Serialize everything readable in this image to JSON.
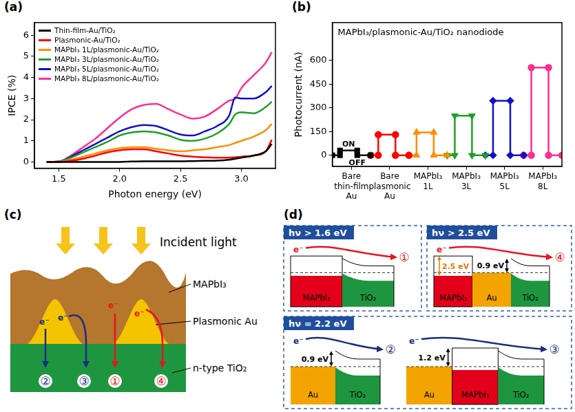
{
  "chart_data": [
    {
      "panel": "(a)",
      "type": "line",
      "x_label": "Photon energy (eV)",
      "y_label": "IPCE (%)",
      "x": [
        1.4,
        1.5,
        1.6,
        1.7,
        1.8,
        1.9,
        2.0,
        2.1,
        2.2,
        2.3,
        2.4,
        2.5,
        2.6,
        2.7,
        2.8,
        2.9,
        2.95,
        3.0,
        3.1,
        3.2,
        3.25
      ],
      "series": [
        {
          "name": "Thin-film-Au/TiO₂",
          "color": "#000000",
          "values": [
            0,
            0,
            0,
            0,
            0,
            0,
            0,
            0.02,
            0.03,
            0.03,
            0.03,
            0.03,
            0.04,
            0.05,
            0.06,
            0.1,
            0.15,
            0.2,
            0.3,
            0.5,
            0.85
          ]
        },
        {
          "name": "Plasmonic-Au/TiO₂",
          "color": "#ff0000",
          "values": [
            0,
            0,
            0.05,
            0.15,
            0.3,
            0.45,
            0.55,
            0.6,
            0.6,
            0.5,
            0.4,
            0.3,
            0.25,
            0.22,
            0.2,
            0.2,
            0.22,
            0.25,
            0.3,
            0.5,
            1.05
          ]
        },
        {
          "name": "MAPbI₃ 1L/plasmonic-Au/TiO₂",
          "color": "#ff8c00",
          "values": [
            0,
            0.01,
            0.1,
            0.25,
            0.4,
            0.55,
            0.65,
            0.7,
            0.7,
            0.62,
            0.55,
            0.5,
            0.55,
            0.6,
            0.7,
            0.8,
            0.9,
            1.0,
            1.2,
            1.5,
            1.8
          ]
        },
        {
          "name": "MAPbI₃ 3L/plasmonic-Au/TiO₂",
          "color": "#1e9e28",
          "values": [
            0,
            0.02,
            0.2,
            0.45,
            0.7,
            0.95,
            1.25,
            1.4,
            1.45,
            1.4,
            1.25,
            1.05,
            1.0,
            1.1,
            1.35,
            1.8,
            2.25,
            2.35,
            2.3,
            2.6,
            2.85
          ]
        },
        {
          "name": "MAPbI₃ 5L/plasmonic-Au/TiO₂",
          "color": "#1010c8",
          "values": [
            0,
            0.02,
            0.25,
            0.55,
            0.85,
            1.15,
            1.45,
            1.65,
            1.75,
            1.7,
            1.5,
            1.3,
            1.25,
            1.45,
            1.7,
            2.2,
            3.05,
            3.0,
            3.0,
            3.3,
            3.6
          ]
        },
        {
          "name": "MAPbI₃ 8L/plasmonic-Au/TiO₂",
          "color": "#ff2d91",
          "values": [
            0,
            0.02,
            0.3,
            0.7,
            1.1,
            1.6,
            2.1,
            2.5,
            2.7,
            2.75,
            2.5,
            2.25,
            2.05,
            2.15,
            2.5,
            2.9,
            3.0,
            3.5,
            4.1,
            4.7,
            5.2
          ]
        }
      ],
      "xlim": [
        1.3,
        3.28
      ],
      "xticks": [
        1.5,
        {
          "value": 2,
          "label": "2.0"
        },
        2.5,
        {
          "value": 3,
          "label": "3.0"
        }
      ],
      "ylim": [
        -0.3,
        6.6
      ],
      "yticks": [
        0,
        1,
        2,
        3,
        4,
        5,
        6
      ],
      "grid": false,
      "legend": "top-left"
    },
    {
      "panel": "(b)",
      "type": "line",
      "title": "MAPbI₃/plasmonic-Au/TiO₂ nanodiode",
      "y_label": "Photocurrent (nA)",
      "annotations": [
        "ON",
        "OFF"
      ],
      "series": [
        {
          "color": "#000000",
          "marker": "square",
          "x": [
            0,
            2,
            2,
            6.5,
            6.5,
            10
          ],
          "values": [
            0,
            0,
            30,
            30,
            0,
            0
          ]
        },
        {
          "color": "#ff0000",
          "marker": "circle",
          "x": [
            10,
            12,
            12,
            16.5,
            16.5,
            20
          ],
          "values": [
            0,
            0,
            130,
            130,
            0,
            0
          ]
        },
        {
          "color": "#ff8c00",
          "marker": "triangle-up",
          "x": [
            20,
            22,
            22,
            26.5,
            26.5,
            30
          ],
          "values": [
            0,
            0,
            145,
            145,
            0,
            0
          ]
        },
        {
          "color": "#1e9e28",
          "marker": "triangle-down",
          "x": [
            30,
            32,
            32,
            36.5,
            36.5,
            40
          ],
          "values": [
            0,
            0,
            250,
            250,
            0,
            0
          ]
        },
        {
          "color": "#1010c8",
          "marker": "diamond",
          "x": [
            40,
            42,
            42,
            46.5,
            46.5,
            50
          ],
          "values": [
            0,
            0,
            345,
            345,
            0,
            0
          ]
        },
        {
          "color": "#ff2d91",
          "marker": "circle",
          "x": [
            50,
            52,
            52,
            56.5,
            56.5,
            60
          ],
          "values": [
            0,
            0,
            555,
            555,
            0,
            0
          ]
        }
      ],
      "xlim": [
        0,
        60
      ],
      "xticks": [
        {
          "value": 5,
          "label": "Bare thin-film Au"
        },
        {
          "value": 15,
          "label": "Bare plasmonic Au"
        },
        {
          "value": 25,
          "label": "MAPbI₃ 1L"
        },
        {
          "value": 35,
          "label": "MAPbI₃ 3L"
        },
        {
          "value": 45,
          "label": "MAPbI₃ 5L"
        },
        {
          "value": 55,
          "label": "MAPbI₃ 8L"
        }
      ],
      "ylim": [
        -70,
        840
      ],
      "yticks": [
        0,
        150,
        300,
        450,
        600
      ],
      "grid": false
    }
  ],
  "panel_c": {
    "panel": "(c)",
    "caption": "Incident light",
    "layers": [
      "MAPbI₃",
      "Plasmonic Au",
      "n-type TiO₂"
    ],
    "electron": "e⁻",
    "paths": [
      {
        "label": "②",
        "color": "#1a2f80"
      },
      {
        "label": "③",
        "color": "#1a2f80"
      },
      {
        "label": "①",
        "color": "#e8141e"
      },
      {
        "label": "④",
        "color": "#e8141e"
      }
    ]
  },
  "panel_d": {
    "panel": "(d)",
    "electron": "e⁻",
    "boxes": [
      {
        "header": "hν > 1.6 eV",
        "diagrams": [
          {
            "layers": [
              "MAPbI₃",
              "TiO₂"
            ],
            "path": "①",
            "color": "#e8141e"
          }
        ]
      },
      {
        "header": "hν > 2.5 eV",
        "diagrams": [
          {
            "layers": [
              "MAPbI₃",
              "Au",
              "TiO₂"
            ],
            "gap_label": "2.5 eV",
            "barrier_label": "0.9 eV",
            "path": "④",
            "color": "#e8141e"
          }
        ]
      },
      {
        "header": "hν = 2.2 eV",
        "diagrams": [
          {
            "layers": [
              "Au",
              "TiO₂"
            ],
            "barrier_label": "0.9 eV",
            "path": "②",
            "color": "#1a2f80"
          },
          {
            "layers": [
              "Au",
              "MAPbI₃",
              "TiO₂"
            ],
            "barrier_label": "1.2 eV",
            "path": "③",
            "color": "#1a2f80"
          }
        ]
      }
    ]
  }
}
